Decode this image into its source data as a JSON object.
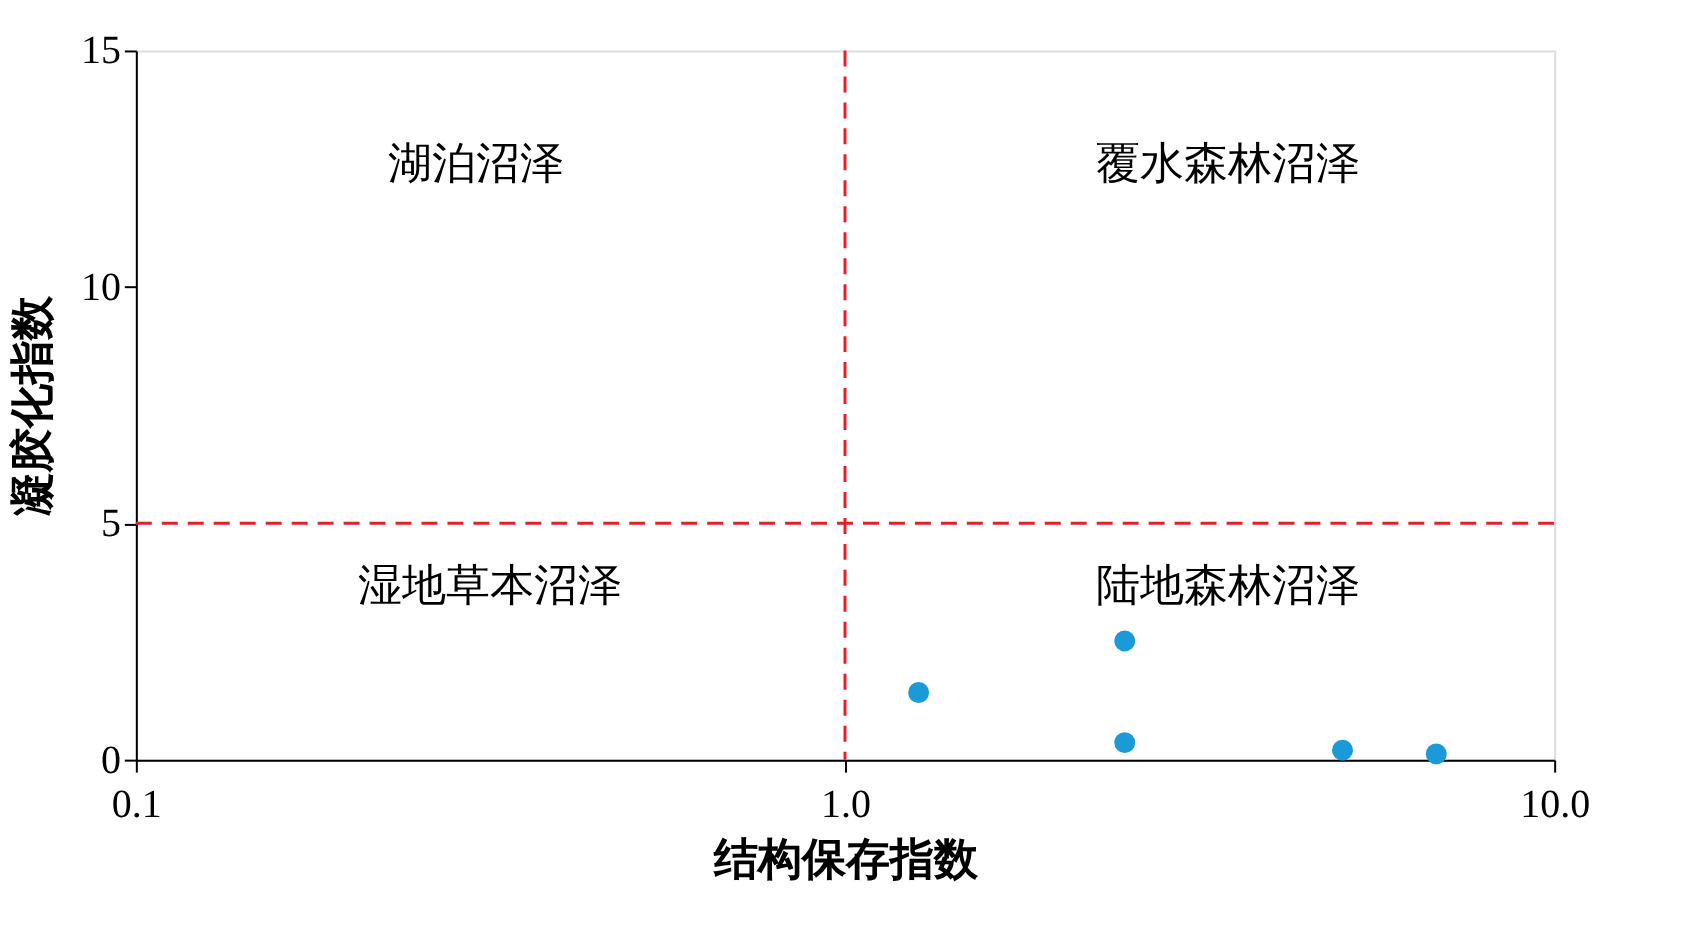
{
  "chart_data": {
    "type": "scatter",
    "xlabel": "结构保存指数",
    "ylabel": "凝胶化指数",
    "x": [
      1.27,
      2.48,
      2.48,
      5.03,
      6.82
    ],
    "series": [
      {
        "color": "#1b9ad8",
        "values": [
          1.42,
          2.51,
          0.36,
          0.2,
          0.12
        ]
      }
    ],
    "log": "x",
    "xlim": [
      0.1,
      10
    ],
    "xticks": [
      {
        "value": 0.1,
        "label": "0.1"
      },
      {
        "value": 1,
        "label": "1.0"
      },
      {
        "value": 10,
        "label": "10.0"
      }
    ],
    "ylim": [
      0,
      15
    ],
    "yticks": [
      0,
      5,
      10,
      15
    ],
    "ref_lines": [
      {
        "axis": "x",
        "value": 1,
        "color": "#e0202a",
        "line_style": "dashed"
      },
      {
        "axis": "y",
        "value": 5,
        "color": "#e0202a",
        "line_style": "dashed"
      }
    ],
    "annotations": [
      "湖泊沼泽",
      "覆水森林沼泽",
      "湿地草本沼泽",
      "陆地森林沼泽"
    ],
    "marker": "circle",
    "grid": false
  }
}
